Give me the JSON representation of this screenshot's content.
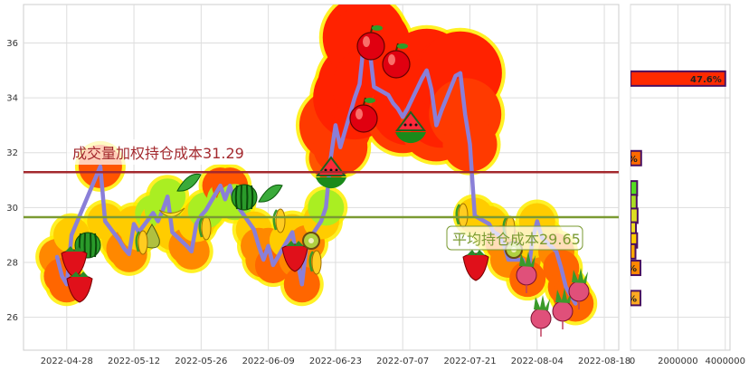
{
  "chart_data": [
    {
      "type": "line",
      "title": "",
      "xlabel": "",
      "ylabel": "",
      "x_ticks": [
        "2022-04-28",
        "2022-05-12",
        "2022-05-26",
        "2022-06-09",
        "2022-06-23",
        "2022-07-07",
        "2022-07-21",
        "2022-08-04",
        "2022-08-18"
      ],
      "y_ticks": [
        26,
        28,
        30,
        32,
        34,
        36
      ],
      "xlim": [
        "2022-04-19",
        "2022-08-21"
      ],
      "ylim": [
        24.8,
        37.4
      ],
      "grid": true,
      "series": [
        {
          "x": [
            "2022-04-26",
            "2022-04-27",
            "2022-04-28",
            "2022-04-29",
            "2022-05-05",
            "2022-05-06",
            "2022-05-09",
            "2022-05-10",
            "2022-05-11",
            "2022-05-12",
            "2022-05-13",
            "2022-05-16",
            "2022-05-17",
            "2022-05-18",
            "2022-05-19",
            "2022-05-20",
            "2022-05-23",
            "2022-05-24",
            "2022-05-25",
            "2022-05-26",
            "2022-05-27",
            "2022-05-30",
            "2022-05-31",
            "2022-06-01",
            "2022-06-02",
            "2022-06-06",
            "2022-06-07",
            "2022-06-08",
            "2022-06-09",
            "2022-06-10",
            "2022-06-13",
            "2022-06-14",
            "2022-06-15",
            "2022-06-16",
            "2022-06-17",
            "2022-06-20",
            "2022-06-21",
            "2022-06-22",
            "2022-06-23",
            "2022-06-24",
            "2022-06-27",
            "2022-06-28",
            "2022-06-29",
            "2022-06-30",
            "2022-07-01",
            "2022-07-04",
            "2022-07-05",
            "2022-07-06",
            "2022-07-07",
            "2022-07-08",
            "2022-07-11",
            "2022-07-12",
            "2022-07-13",
            "2022-07-14",
            "2022-07-15",
            "2022-07-18",
            "2022-07-19",
            "2022-07-20",
            "2022-07-21",
            "2022-07-22",
            "2022-07-25",
            "2022-07-26",
            "2022-07-27",
            "2022-07-28",
            "2022-07-29",
            "2022-08-01",
            "2022-08-02",
            "2022-08-03",
            "2022-08-04",
            "2022-08-05",
            "2022-08-08",
            "2022-08-09",
            "2022-08-10",
            "2022-08-11",
            "2022-08-12"
          ],
          "values": [
            28.2,
            27.5,
            27.2,
            29.0,
            31.5,
            29.5,
            28.8,
            28.5,
            28.3,
            29.4,
            29.1,
            29.8,
            29.5,
            29.9,
            30.4,
            29.1,
            28.6,
            28.4,
            29.4,
            29.7,
            29.9,
            30.8,
            30.3,
            30.8,
            30.2,
            29.2,
            28.6,
            28.1,
            28.6,
            27.9,
            28.8,
            29.1,
            28.1,
            27.2,
            28.7,
            29.5,
            30.0,
            31.8,
            33.0,
            32.2,
            34.0,
            34.5,
            36.2,
            35.9,
            34.4,
            34.1,
            33.8,
            33.6,
            33.3,
            33.6,
            34.7,
            35.0,
            34.3,
            33.0,
            33.5,
            34.8,
            34.9,
            33.4,
            32.3,
            29.7,
            29.4,
            29.1,
            29.0,
            28.7,
            28.1,
            28.1,
            27.4,
            28.8,
            29.5,
            28.9,
            28.4,
            27.8,
            27.1,
            26.8,
            26.5
          ]
        }
      ],
      "reference_lines": [
        {
          "label": "成交量加权持仓成本31.29",
          "value": 31.29,
          "color": "#a3292e"
        },
        {
          "label": "平均持仓成本29.65",
          "value": 29.65,
          "color": "#7a9a32"
        }
      ]
    },
    {
      "type": "bar",
      "orientation": "horizontal",
      "x_ticks": [
        "0",
        "2000000",
        "4000000"
      ],
      "xlim": [
        0,
        4200000
      ],
      "ylim": [
        24.8,
        37.4
      ],
      "grid": true,
      "bars": [
        {
          "price": 34.7,
          "value": 4000000,
          "label": "47.6%",
          "color": "#ff2a00"
        },
        {
          "price": 31.8,
          "value": 450000,
          "label": "%",
          "color": "#ff6a00"
        },
        {
          "price": 30.7,
          "value": 280000,
          "label": "",
          "color": "#55dd22"
        },
        {
          "price": 30.2,
          "value": 260000,
          "label": "",
          "color": "#aadd22"
        },
        {
          "price": 29.7,
          "value": 300000,
          "label": "",
          "color": "#dddd22"
        },
        {
          "price": 29.2,
          "value": 230000,
          "label": "",
          "color": "#eedd22"
        },
        {
          "price": 28.8,
          "value": 280000,
          "label": "",
          "color": "#ffcc00"
        },
        {
          "price": 28.4,
          "value": 210000,
          "label": "",
          "color": "#ffaa00"
        },
        {
          "price": 27.8,
          "value": 420000,
          "label": "%",
          "color": "#ff8800"
        },
        {
          "price": 26.7,
          "value": 420000,
          "label": "%",
          "color": "#ffaa22"
        }
      ]
    }
  ]
}
